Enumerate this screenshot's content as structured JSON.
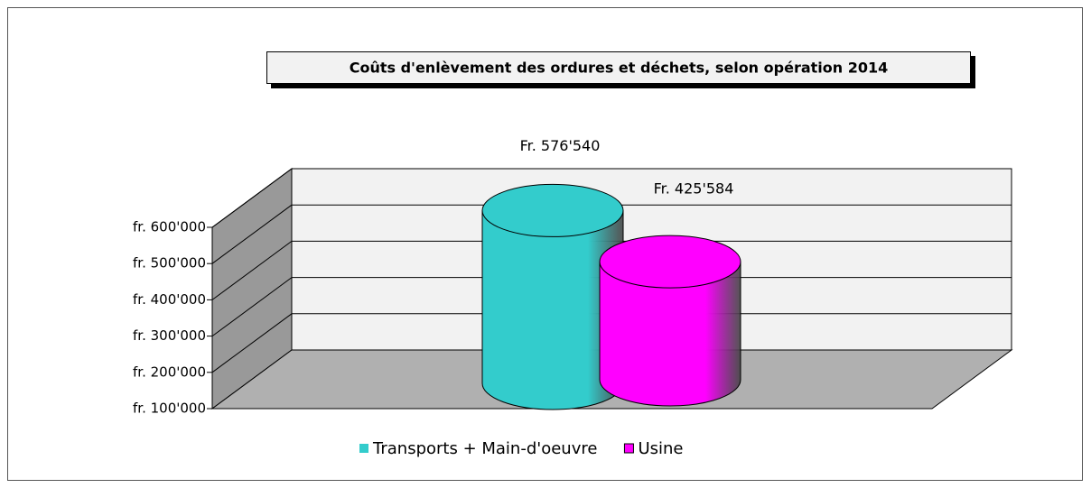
{
  "chart_data": {
    "type": "bar3d_cylinder",
    "title": "Coûts d'enlèvement des ordures et déchets, selon opération 2014",
    "categories": [
      null
    ],
    "series": [
      {
        "name": "Transports + Main-d'oeuvre",
        "color": "#33cccc",
        "values": [
          576540
        ],
        "value_labels": [
          "Fr. 576'540"
        ]
      },
      {
        "name": "Usine",
        "color": "#ff00ff",
        "values": [
          425584
        ],
        "value_labels": [
          "Fr. 425'584"
        ]
      }
    ],
    "ylim": [
      100000,
      600000
    ],
    "yticks": [
      {
        "value": 100000,
        "label": "fr. 100'000"
      },
      {
        "value": 200000,
        "label": "fr. 200'000"
      },
      {
        "value": 300000,
        "label": "fr. 300'000"
      },
      {
        "value": 400000,
        "label": "fr. 400'000"
      },
      {
        "value": 500000,
        "label": "fr. 500'000"
      },
      {
        "value": 600000,
        "label": "fr. 600'000"
      }
    ],
    "grid": true,
    "legend": "bottom"
  }
}
